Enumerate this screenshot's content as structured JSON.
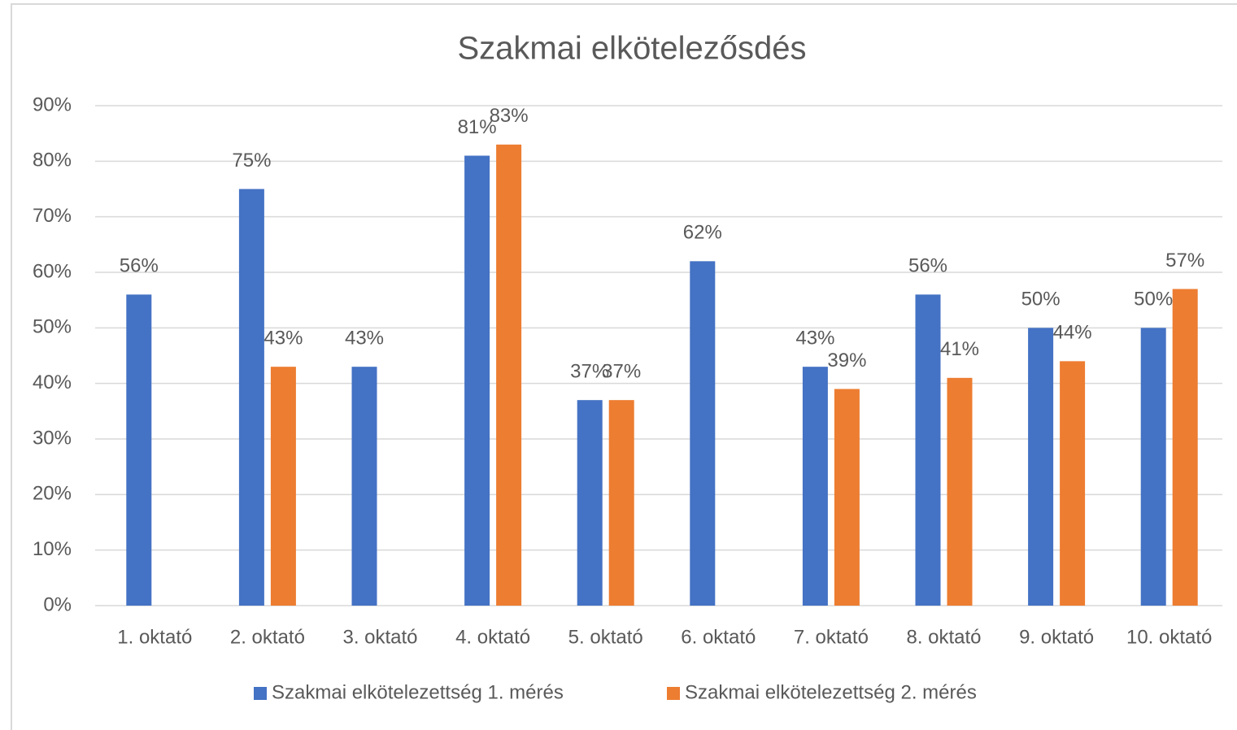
{
  "chart_data": {
    "type": "bar",
    "title": "Szakmai elkötelezősdés",
    "categories": [
      "1. oktató",
      "2. oktató",
      "3. oktató",
      "4. oktató",
      "5. oktató",
      "6. oktató",
      "7. oktató",
      "8. oktató",
      "9. oktató",
      "10. oktató"
    ],
    "series": [
      {
        "name": "Szakmai elkötelezettség 1. mérés",
        "color": "#4472c4",
        "values": [
          56,
          75,
          43,
          81,
          37,
          62,
          43,
          56,
          50,
          50
        ],
        "value_labels": [
          "56%",
          "75%",
          "43%",
          "81%",
          "37%",
          "62%",
          "43%",
          "56%",
          "50%",
          "50%"
        ]
      },
      {
        "name": "Szakmai elkötelezettség 2. mérés",
        "color": "#ed7d31",
        "values": [
          null,
          43,
          null,
          83,
          37,
          null,
          39,
          41,
          44,
          57
        ],
        "value_labels": [
          null,
          "43%",
          null,
          "83%",
          "37%",
          null,
          "39%",
          "41%",
          "44%",
          "57%"
        ]
      }
    ],
    "ylim": [
      0,
      90
    ],
    "yticks": [
      {
        "value": 0,
        "label": "0%"
      },
      {
        "value": 10,
        "label": "10%"
      },
      {
        "value": 20,
        "label": "20%"
      },
      {
        "value": 30,
        "label": "30%"
      },
      {
        "value": 40,
        "label": "40%"
      },
      {
        "value": 50,
        "label": "50%"
      },
      {
        "value": 60,
        "label": "60%"
      },
      {
        "value": 70,
        "label": "70%"
      },
      {
        "value": 80,
        "label": "80%"
      },
      {
        "value": 90,
        "label": "90%"
      }
    ],
    "grid": true,
    "legend": "bottom"
  }
}
